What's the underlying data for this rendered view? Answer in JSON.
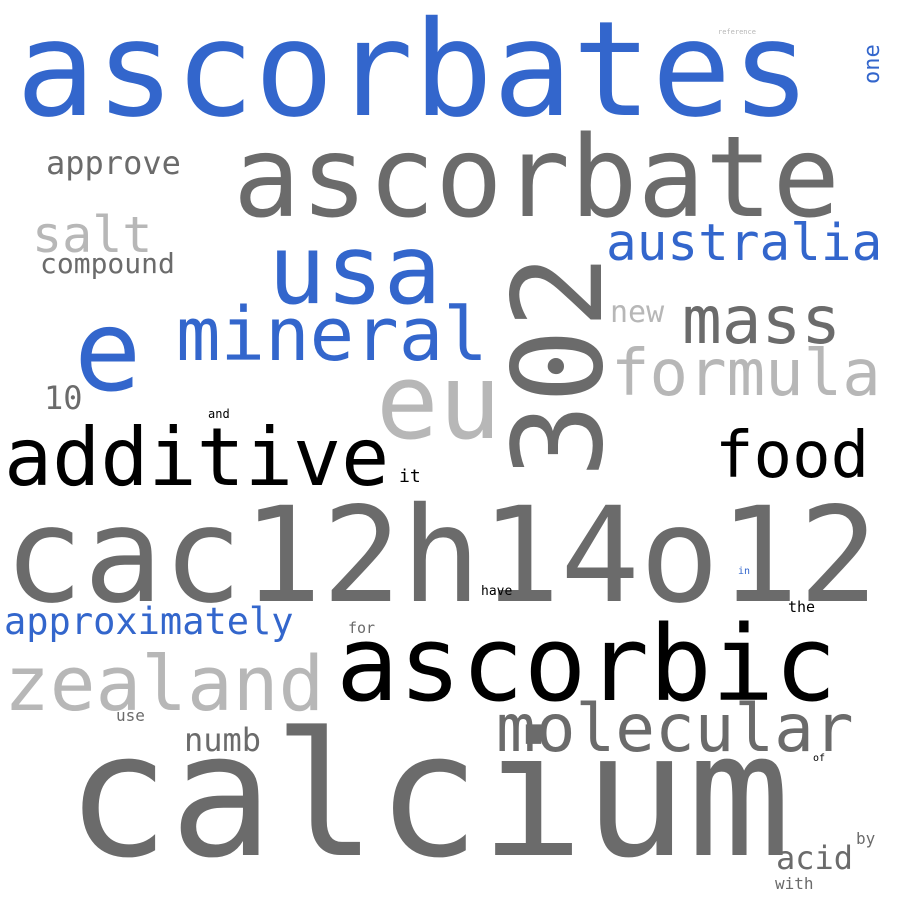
{
  "words": [
    {
      "text": "ascorbates",
      "color": "#3366cc"
    },
    {
      "text": "ascorbate",
      "color": "#6b6b6b"
    },
    {
      "text": "calcium",
      "color": "#6b6b6b"
    },
    {
      "text": "cac12h14o12",
      "color": "#6b6b6b"
    },
    {
      "text": "302",
      "color": "#6b6b6b"
    },
    {
      "text": "ascorbic",
      "color": "#000000"
    },
    {
      "text": "additive",
      "color": "#000000"
    },
    {
      "text": "usa",
      "color": "#3366cc"
    },
    {
      "text": "e",
      "color": "#3366cc"
    },
    {
      "text": "mineral",
      "color": "#3366cc"
    },
    {
      "text": "eu",
      "color": "#b7b7b7"
    },
    {
      "text": "zealand",
      "color": "#b7b7b7"
    },
    {
      "text": "molecular",
      "color": "#6b6b6b"
    },
    {
      "text": "food",
      "color": "#000000"
    },
    {
      "text": "mass",
      "color": "#6b6b6b"
    },
    {
      "text": "formula",
      "color": "#b7b7b7"
    },
    {
      "text": "australia",
      "color": "#3366cc"
    },
    {
      "text": "approximately",
      "color": "#3366cc"
    },
    {
      "text": "salt",
      "color": "#b7b7b7"
    },
    {
      "text": "approve",
      "color": "#6b6b6b"
    },
    {
      "text": "compound",
      "color": "#6b6b6b"
    },
    {
      "text": "new",
      "color": "#b7b7b7"
    },
    {
      "text": "numb",
      "color": "#6b6b6b"
    },
    {
      "text": "acid",
      "color": "#6b6b6b"
    },
    {
      "text": "10",
      "color": "#6b6b6b"
    },
    {
      "text": "one",
      "color": "#3366cc"
    },
    {
      "text": "it",
      "color": "#000000"
    },
    {
      "text": "and",
      "color": "#000000"
    },
    {
      "text": "have",
      "color": "#000000"
    },
    {
      "text": "the",
      "color": "#000000"
    },
    {
      "text": "for",
      "color": "#6b6b6b"
    },
    {
      "text": "use",
      "color": "#6b6b6b"
    },
    {
      "text": "with",
      "color": "#6b6b6b"
    },
    {
      "text": "by",
      "color": "#6b6b6b"
    },
    {
      "text": "of",
      "color": "#000000"
    },
    {
      "text": "in",
      "color": "#3366cc"
    },
    {
      "text": "reference",
      "color": "#b7b7b7"
    }
  ]
}
